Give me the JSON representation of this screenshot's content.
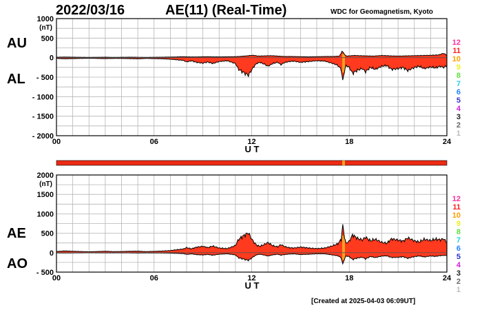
{
  "header": {
    "date": "2022/03/16",
    "title": "AE(11) (Real-Time)",
    "source": "WDC for Geomagnetism, Kyoto"
  },
  "footer": {
    "created": "[Created at 2025-04-03 06:09UT]"
  },
  "colors": {
    "fill": "#ff3a1e",
    "outline": "#000000",
    "grid": "#b4b4b4",
    "spike": "#f4a020",
    "strip": "#ec2a14"
  },
  "station_legend": [
    {
      "label": "12",
      "color": "#ff2e9c"
    },
    {
      "label": "11",
      "color": "#ff1e1e"
    },
    {
      "label": "10",
      "color": "#ffa000"
    },
    {
      "label": "9",
      "color": "#f0f020"
    },
    {
      "label": "8",
      "color": "#60e040"
    },
    {
      "label": "7",
      "color": "#20d0e0"
    },
    {
      "label": "6",
      "color": "#2080ff"
    },
    {
      "label": "5",
      "color": "#3030d0"
    },
    {
      "label": "4",
      "color": "#d020e0"
    },
    {
      "label": "3",
      "color": "#222222"
    },
    {
      "label": "2",
      "color": "#666666"
    },
    {
      "label": "1",
      "color": "#bbbbbb"
    }
  ],
  "coverage_strip": {
    "color": "#ec2a14",
    "marker_ut": 17.65,
    "marker_color": "#f4a020"
  },
  "chart_data": [
    {
      "type": "area",
      "panel": "AU/AL",
      "upper_label": "AU",
      "lower_label": "AL",
      "unit": "(nT)",
      "xlabel": "U T",
      "xlim": [
        0,
        24
      ],
      "ylim": [
        -2000,
        1000
      ],
      "yticks": [
        1000,
        500,
        0,
        -500,
        -1000,
        -1500,
        -2000
      ],
      "ytick_labels": [
        "1000",
        "500",
        "0",
        "- 500",
        "- 1000",
        "- 1500",
        "- 2000"
      ],
      "xticks": [
        0,
        6,
        12,
        18,
        24
      ],
      "xtick_labels": [
        "00",
        "06",
        "12",
        "18",
        "24"
      ],
      "grid": true,
      "series": [
        {
          "name": "AU",
          "x": [
            0,
            0.5,
            1,
            1.5,
            2,
            2.5,
            3,
            3.5,
            4,
            4.5,
            5,
            5.5,
            6,
            6.5,
            7,
            7.5,
            7.8,
            8,
            8.5,
            9,
            9.3,
            9.6,
            10,
            10.5,
            11,
            11.4,
            11.7,
            11.9,
            12.1,
            12.4,
            12.8,
            13.2,
            13.6,
            14,
            14.5,
            15,
            15.5,
            16,
            16.5,
            17,
            17.4,
            17.55,
            17.65,
            17.75,
            17.85,
            18,
            18.3,
            18.6,
            19,
            19.5,
            20,
            20.5,
            21,
            21.5,
            22,
            22.5,
            23,
            23.5,
            23.8,
            24
          ],
          "y": [
            10,
            15,
            12,
            10,
            8,
            10,
            12,
            8,
            10,
            12,
            10,
            8,
            10,
            12,
            15,
            20,
            25,
            20,
            18,
            22,
            25,
            20,
            20,
            22,
            25,
            35,
            45,
            55,
            60,
            40,
            45,
            50,
            40,
            30,
            30,
            25,
            20,
            25,
            30,
            30,
            40,
            160,
            120,
            60,
            40,
            45,
            55,
            50,
            45,
            40,
            55,
            45,
            40,
            45,
            50,
            55,
            60,
            70,
            110,
            60
          ]
        },
        {
          "name": "AL",
          "x": [
            0,
            0.5,
            1,
            1.5,
            2,
            2.5,
            3,
            3.5,
            4,
            4.5,
            5,
            5.5,
            6,
            6.5,
            7,
            7.5,
            7.8,
            8,
            8.3,
            8.6,
            9,
            9.3,
            9.6,
            10,
            10.5,
            11,
            11.2,
            11.5,
            11.8,
            11.95,
            12.1,
            12.3,
            12.5,
            12.8,
            13,
            13.3,
            13.6,
            13.8,
            14,
            14.3,
            14.6,
            15,
            15.5,
            16,
            16.5,
            17,
            17.3,
            17.5,
            17.6,
            17.7,
            17.8,
            18,
            18.2,
            18.5,
            18.8,
            19,
            19.3,
            19.6,
            20,
            20.3,
            20.6,
            21,
            21.3,
            21.6,
            22,
            22.3,
            22.6,
            23,
            23.3,
            23.6,
            23.8,
            24
          ],
          "y": [
            -20,
            -30,
            -25,
            -20,
            -15,
            -20,
            -25,
            -20,
            -20,
            -25,
            -30,
            -20,
            -25,
            -30,
            -40,
            -60,
            -70,
            -110,
            -80,
            -120,
            -140,
            -110,
            -150,
            -100,
            -80,
            -150,
            -300,
            -380,
            -450,
            -350,
            -250,
            -150,
            -120,
            -170,
            -220,
            -150,
            -120,
            -180,
            -130,
            -100,
            -90,
            -120,
            -100,
            -80,
            -90,
            -150,
            -200,
            -300,
            -600,
            -350,
            -200,
            -250,
            -400,
            -320,
            -280,
            -360,
            -250,
            -300,
            -220,
            -200,
            -300,
            -280,
            -250,
            -330,
            -250,
            -220,
            -280,
            -240,
            -260,
            -220,
            -250,
            -200
          ]
        }
      ]
    },
    {
      "type": "area",
      "panel": "AE/AO",
      "upper_label": "AE",
      "lower_label": "AO",
      "unit": "(nT)",
      "xlabel": "U T",
      "xlim": [
        0,
        24
      ],
      "ylim": [
        -500,
        2000
      ],
      "yticks": [
        2000,
        1500,
        1000,
        500,
        0,
        -500
      ],
      "ytick_labels": [
        "2000",
        "1500",
        "1000",
        "500",
        "0",
        "- 500"
      ],
      "xticks": [
        0,
        6,
        12,
        18,
        24
      ],
      "xtick_labels": [
        "00",
        "06",
        "12",
        "18",
        "24"
      ],
      "grid": true,
      "series": [
        {
          "name": "AE",
          "x": [
            0,
            0.5,
            1,
            1.5,
            2,
            2.5,
            3,
            3.5,
            4,
            4.5,
            5,
            5.5,
            6,
            6.5,
            7,
            7.5,
            7.8,
            8,
            8.3,
            8.6,
            9,
            9.3,
            9.6,
            10,
            10.5,
            11,
            11.2,
            11.5,
            11.8,
            11.95,
            12.1,
            12.3,
            12.5,
            12.8,
            13,
            13.3,
            13.6,
            13.8,
            14,
            14.3,
            14.6,
            15,
            15.5,
            16,
            16.5,
            17,
            17.3,
            17.5,
            17.6,
            17.7,
            17.8,
            18,
            18.2,
            18.5,
            18.8,
            19,
            19.3,
            19.6,
            20,
            20.3,
            20.6,
            21,
            21.3,
            21.6,
            22,
            22.3,
            22.6,
            23,
            23.3,
            23.6,
            23.8,
            24
          ],
          "y": [
            30,
            45,
            37,
            30,
            23,
            30,
            37,
            28,
            30,
            37,
            40,
            28,
            35,
            42,
            55,
            80,
            95,
            130,
            100,
            140,
            165,
            130,
            170,
            120,
            105,
            185,
            345,
            435,
            510,
            390,
            290,
            195,
            165,
            215,
            260,
            180,
            150,
            210,
            160,
            130,
            120,
            145,
            120,
            105,
            120,
            180,
            230,
            340,
            700,
            410,
            240,
            295,
            455,
            370,
            325,
            400,
            305,
            345,
            265,
            240,
            355,
            325,
            295,
            380,
            305,
            275,
            345,
            310,
            350,
            330,
            360,
            260
          ]
        },
        {
          "name": "AO",
          "x": [
            0,
            0.5,
            1,
            1.5,
            2,
            2.5,
            3,
            3.5,
            4,
            4.5,
            5,
            5.5,
            6,
            6.5,
            7,
            7.5,
            7.8,
            8,
            8.3,
            8.6,
            9,
            9.3,
            9.6,
            10,
            10.5,
            11,
            11.2,
            11.5,
            11.8,
            11.95,
            12.1,
            12.3,
            12.5,
            12.8,
            13,
            13.3,
            13.6,
            13.8,
            14,
            14.3,
            14.6,
            15,
            15.5,
            16,
            16.5,
            17,
            17.3,
            17.5,
            17.6,
            17.7,
            17.8,
            18,
            18.2,
            18.5,
            18.8,
            19,
            19.3,
            19.6,
            20,
            20.3,
            20.6,
            21,
            21.3,
            21.6,
            22,
            22.3,
            22.6,
            23,
            23.3,
            23.6,
            23.8,
            24
          ],
          "y": [
            -5,
            -8,
            -6,
            -5,
            -4,
            -5,
            -6,
            -6,
            -5,
            -6,
            -10,
            -6,
            -8,
            -9,
            -12,
            -20,
            -23,
            -45,
            -30,
            -50,
            -58,
            -45,
            -65,
            -40,
            -28,
            -58,
            -130,
            -165,
            -195,
            -155,
            -105,
            -55,
            -40,
            -63,
            -85,
            -55,
            -40,
            -65,
            -50,
            -35,
            -30,
            -48,
            -40,
            -28,
            -30,
            -60,
            -80,
            -130,
            -300,
            -165,
            -85,
            -100,
            -175,
            -135,
            -118,
            -160,
            -98,
            -125,
            -87,
            -80,
            -123,
            -118,
            -103,
            -143,
            -100,
            -83,
            -110,
            -85,
            -95,
            -75,
            -70,
            -70
          ]
        }
      ]
    }
  ]
}
